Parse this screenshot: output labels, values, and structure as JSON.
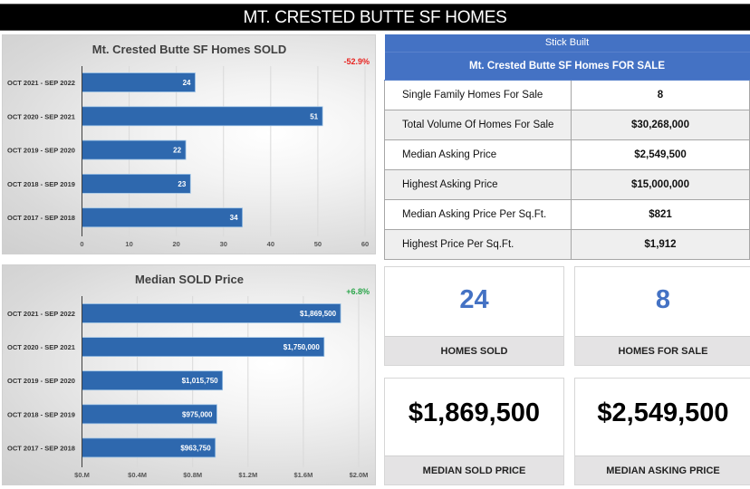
{
  "header": {
    "title": "MT. CRESTED BUTTE SF HOMES"
  },
  "chart_data": [
    {
      "type": "bar",
      "orientation": "horizontal",
      "title": "Mt. Crested Butte SF Homes SOLD",
      "annotation": "-52.9%",
      "annotation_color": "#e8231f",
      "categories": [
        "OCT 2021 - SEP 2022",
        "OCT 2020 - SEP 2021",
        "OCT 2019 - SEP 2020",
        "OCT 2018 - SEP 2019",
        "OCT 2017 - SEP 2018"
      ],
      "values": [
        24,
        51,
        22,
        23,
        34
      ],
      "value_labels": [
        "24",
        "51",
        "22",
        "23",
        "34"
      ],
      "xlim": [
        0,
        60
      ],
      "xticks": [
        0,
        10,
        20,
        30,
        40,
        50,
        60
      ],
      "xtick_labels": [
        "0",
        "10",
        "20",
        "30",
        "40",
        "50",
        "60"
      ],
      "xlabel": "",
      "ylabel": "",
      "grid": true,
      "bar_color": "#2e68ae"
    },
    {
      "type": "bar",
      "orientation": "horizontal",
      "title": "Median SOLD Price",
      "annotation": "+6.8%",
      "annotation_color": "#2aa54a",
      "categories": [
        "OCT 2021 - SEP 2022",
        "OCT 2020 - SEP 2021",
        "OCT 2019 - SEP 2020",
        "OCT 2018 - SEP 2019",
        "OCT 2017 - SEP 2018"
      ],
      "values": [
        1869500,
        1750000,
        1015750,
        975000,
        963750
      ],
      "value_labels": [
        "$1,869,500",
        "$1,750,000",
        "$1,015,750",
        "$975,000",
        "$963,750"
      ],
      "xlim": [
        0,
        2000000
      ],
      "xticks": [
        0,
        400000,
        800000,
        1200000,
        1600000,
        2000000
      ],
      "xtick_labels": [
        "$0.M",
        "$0.4M",
        "$0.8M",
        "$1.2M",
        "$1.6M",
        "$2.0M"
      ],
      "xlabel": "",
      "ylabel": "",
      "grid": true,
      "bar_color": "#2e68ae"
    }
  ],
  "for_sale_table": {
    "header_top": "Stick Built",
    "header_sub": "Mt. Crested Butte SF Homes FOR SALE",
    "rows": [
      {
        "label": "Single Family Homes For Sale",
        "value": "8"
      },
      {
        "label": "Total Volume Of Homes For Sale",
        "value": "$30,268,000"
      },
      {
        "label": "Median Asking Price",
        "value": "$2,549,500"
      },
      {
        "label": "Highest Asking Price",
        "value": "$15,000,000"
      },
      {
        "label": "Median Asking Price Per Sq.Ft.",
        "value": "$821"
      },
      {
        "label": "Highest Price Per Sq.Ft.",
        "value": "$1,912"
      }
    ]
  },
  "kpis": {
    "homes_sold": {
      "value": "24",
      "label": "HOMES SOLD"
    },
    "homes_for_sale": {
      "value": "8",
      "label": "HOMES FOR SALE"
    },
    "median_sold_price": {
      "value": "$1,869,500",
      "label": "MEDIAN SOLD PRICE"
    },
    "median_asking_price": {
      "value": "$2,549,500",
      "label": "MEDIAN ASKING PRICE"
    }
  }
}
